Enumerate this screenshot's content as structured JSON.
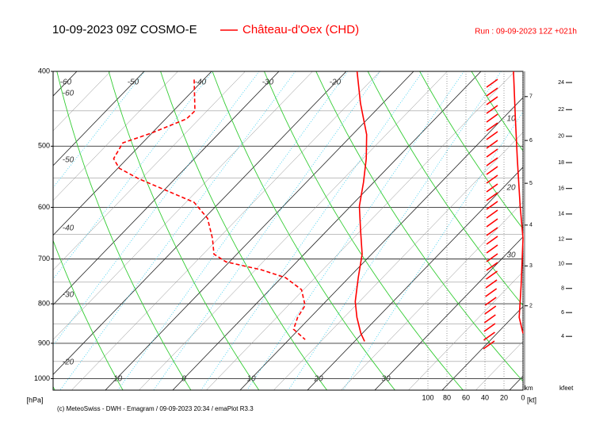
{
  "chart_data": {
    "type": "emagram",
    "title": "10-09-2023 09Z COSMO-E",
    "run": "Run : 09-09-2023 12Z +021h",
    "footer": "(c) MeteoSwiss - DWH - Emagram / 09-09-2023 20:34 / emaPlot R3.3",
    "ylabel": "[hPa]",
    "ylim": [
      400,
      1035
    ],
    "yticks": [
      400,
      500,
      600,
      700,
      800,
      900,
      1000
    ],
    "log_y": true,
    "xlabel": "[kt]",
    "xticks": [
      100,
      80,
      60,
      40,
      20,
      0
    ],
    "km_label": "km",
    "km_ticks": [
      2,
      3,
      4,
      5,
      6,
      7
    ],
    "kfeet_label": "kfeet",
    "kfeet_ticks": [
      4,
      6,
      8,
      10,
      12,
      14,
      16,
      18,
      20,
      22,
      24
    ],
    "isotherm_labels_top": [
      -60,
      -50,
      -40,
      -30,
      -20
    ],
    "isotherm_labels_bottom": [
      -10,
      0,
      10,
      20,
      30
    ],
    "side_labels": [
      -60,
      -50,
      -40,
      -30,
      -20
    ],
    "right_labels": [
      10,
      20,
      30
    ],
    "series": [
      {
        "name": "Château-d'Oex (CHD)",
        "color": "#ff0000",
        "pressure": [
          400,
          440,
          483,
          519,
          557,
          598,
          642,
          690,
          740,
          795,
          833,
          874,
          895
        ],
        "values": [
          -18.4,
          -13.3,
          -7.9,
          -4.5,
          -1.5,
          1.3,
          4.9,
          8.6,
          11.4,
          14.4,
          16.9,
          19.8,
          21.5
        ]
      },
      {
        "color": "#ff0000",
        "dashed": true,
        "pressure": [
          410,
          450,
          461,
          481,
          495,
          519,
          534,
          551,
          571,
          591,
          620,
          658,
          690,
          706,
          723,
          740,
          767,
          804,
          833,
          863,
          890
        ],
        "values": [
          -41.4,
          -36.8,
          -36.9,
          -40.1,
          -42.9,
          -42.0,
          -39.8,
          -35.4,
          -29.5,
          -23.8,
          -19.5,
          -15.9,
          -13.4,
          -10.5,
          -4.1,
          0.6,
          4.7,
          7.5,
          8.1,
          9.2,
          12.4
        ]
      },
      {
        "color": "#ff0000",
        "axis": "wind",
        "pressure": [
          400,
          461,
          519,
          598,
          658,
          758,
          833,
          874
        ],
        "values": [
          10,
          8,
          6,
          3,
          0,
          2,
          4,
          0
        ]
      }
    ]
  }
}
